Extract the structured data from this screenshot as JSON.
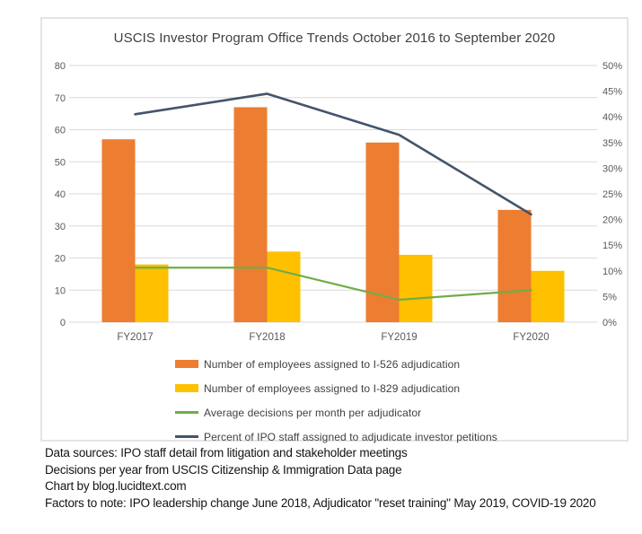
{
  "chart_data": {
    "type": "bar",
    "subtype": "combo-bar-line-dual-axis",
    "title": "USCIS Investor Program Office Trends October 2016 to September 2020",
    "categories": [
      "FY2017",
      "FY2018",
      "FY2019",
      "FY2020"
    ],
    "left_axis": {
      "min": 0,
      "max": 80,
      "step": 10,
      "tick_labels": [
        "80",
        "70",
        "60",
        "50",
        "40",
        "30",
        "20",
        "10",
        "0"
      ]
    },
    "right_axis": {
      "min": 0,
      "max": 50,
      "step": 5,
      "unit": "%",
      "tick_labels": [
        "50%",
        "45%",
        "40%",
        "35%",
        "30%",
        "25%",
        "20%",
        "15%",
        "10%",
        "5%",
        "0%"
      ]
    },
    "grid": true,
    "legend_position": "bottom-left",
    "series": [
      {
        "name": "Number of employees assigned to I-526 adjudication",
        "type": "bar",
        "axis": "left",
        "color": "#ED7D31",
        "values": [
          57,
          67,
          56,
          35
        ]
      },
      {
        "name": "Number of employees assigned to I-829 adjudication",
        "type": "bar",
        "axis": "left",
        "color": "#FFC000",
        "values": [
          18,
          22,
          21,
          16
        ]
      },
      {
        "name": "Average decisions per month per adjudicator",
        "type": "line",
        "axis": "left",
        "color": "#70AD47",
        "values": [
          17,
          17,
          7,
          10
        ]
      },
      {
        "name": "Percent of IPO staff assigned to adjudicate investor petitions",
        "type": "line",
        "axis": "right",
        "color": "#44546A",
        "values": [
          40.5,
          44.5,
          36.5,
          21
        ]
      }
    ],
    "colors": {
      "gridline": "#d9d9d9",
      "axis_text": "#595959",
      "box_border": "#e4e4e4",
      "title_text": "#3f3f3f"
    }
  },
  "footer": {
    "lines": [
      "Data sources: IPO staff detail from litigation and stakeholder meetings",
      "Decisions per year from USCIS Citizenship & Immigration Data page",
      "Chart by blog.lucidtext.com",
      "Factors to note: IPO leadership change June 2018, Adjudicator \"reset training\" May 2019, COVID-19 2020"
    ]
  }
}
